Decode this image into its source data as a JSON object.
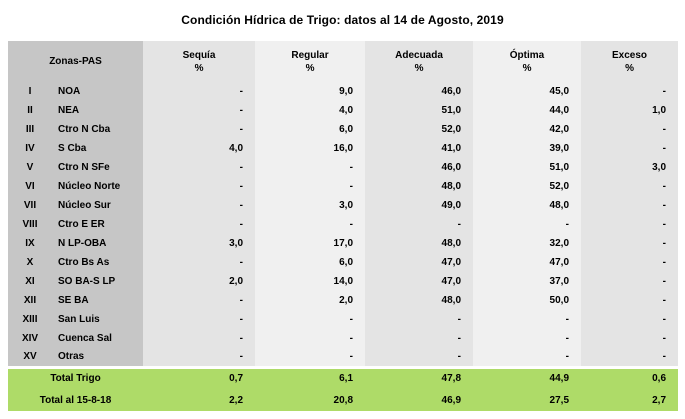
{
  "colors": {
    "zone_column_bg": "#c6c6c6",
    "column_bg_dark": "#e4e4e4",
    "column_bg_light": "#f0f0f0",
    "totals_bg": "#aedb68",
    "text": "#000000",
    "background": "#ffffff"
  },
  "chart_data": {
    "type": "table",
    "title": "Condición Hídrica de Trigo: datos al 14 de Agosto, 2019",
    "header": {
      "zones_label": "Zonas-PAS",
      "value_columns": [
        {
          "key": "sequia",
          "label": "Sequía",
          "unit": "%"
        },
        {
          "key": "regular",
          "label": "Regular",
          "unit": "%"
        },
        {
          "key": "adecuada",
          "label": "Adecuada",
          "unit": "%"
        },
        {
          "key": "optima",
          "label": "Óptima",
          "unit": "%"
        },
        {
          "key": "exceso",
          "label": "Exceso",
          "unit": "%"
        }
      ]
    },
    "rows": [
      {
        "numeral": "I",
        "zone": "NOA",
        "values": [
          "-",
          "9,0",
          "46,0",
          "45,0",
          "-"
        ]
      },
      {
        "numeral": "II",
        "zone": "NEA",
        "values": [
          "-",
          "4,0",
          "51,0",
          "44,0",
          "1,0"
        ]
      },
      {
        "numeral": "III",
        "zone": "Ctro N Cba",
        "values": [
          "-",
          "6,0",
          "52,0",
          "42,0",
          "-"
        ]
      },
      {
        "numeral": "IV",
        "zone": "S Cba",
        "values": [
          "4,0",
          "16,0",
          "41,0",
          "39,0",
          "-"
        ]
      },
      {
        "numeral": "V",
        "zone": "Ctro N SFe",
        "values": [
          "-",
          "-",
          "46,0",
          "51,0",
          "3,0"
        ]
      },
      {
        "numeral": "VI",
        "zone": "Núcleo Norte",
        "values": [
          "-",
          "-",
          "48,0",
          "52,0",
          "-"
        ]
      },
      {
        "numeral": "VII",
        "zone": "Núcleo Sur",
        "values": [
          "-",
          "3,0",
          "49,0",
          "48,0",
          "-"
        ]
      },
      {
        "numeral": "VIII",
        "zone": "Ctro E ER",
        "values": [
          "-",
          "-",
          "-",
          "-",
          "-"
        ]
      },
      {
        "numeral": "IX",
        "zone": "N LP-OBA",
        "values": [
          "3,0",
          "17,0",
          "48,0",
          "32,0",
          "-"
        ]
      },
      {
        "numeral": "X",
        "zone": "Ctro Bs As",
        "values": [
          "-",
          "6,0",
          "47,0",
          "47,0",
          "-"
        ]
      },
      {
        "numeral": "XI",
        "zone": "SO BA-S LP",
        "values": [
          "2,0",
          "14,0",
          "47,0",
          "37,0",
          "-"
        ]
      },
      {
        "numeral": "XII",
        "zone": "SE BA",
        "values": [
          "-",
          "2,0",
          "48,0",
          "50,0",
          "-"
        ]
      },
      {
        "numeral": "XIII",
        "zone": "San Luis",
        "values": [
          "-",
          "-",
          "-",
          "-",
          "-"
        ]
      },
      {
        "numeral": "XIV",
        "zone": "Cuenca Sal",
        "values": [
          "-",
          "-",
          "-",
          "-",
          "-"
        ]
      },
      {
        "numeral": "XV",
        "zone": "Otras",
        "values": [
          "-",
          "-",
          "-",
          "-",
          "-"
        ]
      }
    ],
    "totals": [
      {
        "key": "total-trigo",
        "label": "Total Trigo",
        "values": [
          "0,7",
          "6,1",
          "47,8",
          "44,9",
          "0,6"
        ]
      },
      {
        "key": "total-previo",
        "label": "Total al 15-8-18",
        "values": [
          "2,2",
          "20,8",
          "46,9",
          "27,5",
          "2,7"
        ]
      }
    ]
  }
}
